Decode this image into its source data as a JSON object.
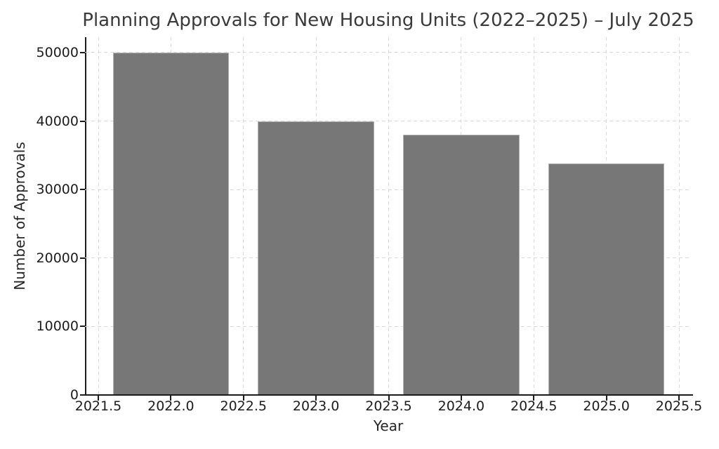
{
  "chart_data": {
    "type": "bar",
    "title": "Planning Approvals for New Housing Units (2022–2025) – July 2025",
    "xlabel": "Year",
    "ylabel": "Number of Approvals",
    "categories": [
      2022,
      2023,
      2024,
      2025
    ],
    "values": [
      50000,
      40000,
      38000,
      33800
    ],
    "bar_width_years": 0.8,
    "x_ticks": [
      2021.5,
      2022.0,
      2022.5,
      2023.0,
      2023.5,
      2024.0,
      2024.5,
      2025.0,
      2025.5
    ],
    "x_tick_labels": [
      "2021.5",
      "2022.0",
      "2022.5",
      "2023.0",
      "2023.5",
      "2024.0",
      "2024.5",
      "2025.0",
      "2025.5"
    ],
    "y_ticks": [
      0,
      10000,
      20000,
      30000,
      40000,
      50000
    ],
    "y_tick_labels": [
      "0",
      "10000",
      "20000",
      "30000",
      "40000",
      "50000"
    ],
    "xlim": [
      2021.41,
      2025.59
    ],
    "ylim": [
      0,
      52250
    ],
    "grid": "dashed, both axes, light gray",
    "legend": "none",
    "colors": {
      "bar_fill": "#777777",
      "bar_edge": "#b3b3b3",
      "grid": "#d9d9d9",
      "axis": "#1c1c1c",
      "title_text": "#3a3a3a",
      "background": "#ffffff"
    }
  }
}
